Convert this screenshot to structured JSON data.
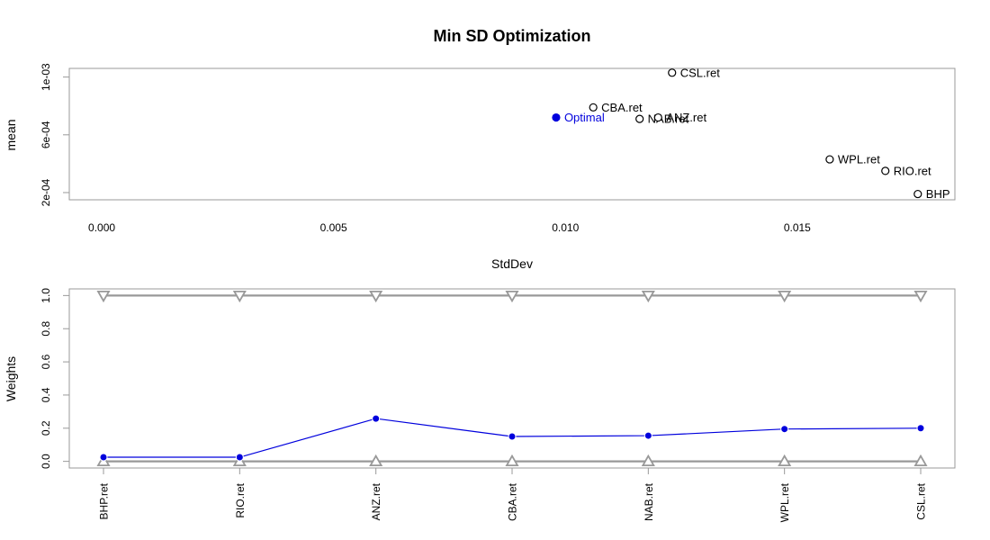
{
  "title": "Min SD Optimization",
  "chart_data": [
    {
      "type": "scatter",
      "title": "Min SD Optimization",
      "xlabel": "StdDev",
      "ylabel": "mean",
      "xlim": [
        -0.0007,
        0.0184
      ],
      "ylim": [
        0.00015,
        0.00106
      ],
      "x_ticks": [
        0.0,
        0.005,
        0.01,
        0.015
      ],
      "x_tick_labels": [
        "0.000",
        "0.005",
        "0.010",
        "0.015"
      ],
      "y_ticks": [
        0.0002,
        0.0006,
        0.001
      ],
      "y_tick_labels": [
        "2e-04",
        "6e-04",
        "1e-03"
      ],
      "grid": false,
      "assets_color": "#000000",
      "optimal_color": "#0000dd",
      "points": [
        {
          "name": "CSL.ret",
          "x": 0.0123,
          "y": 0.00103,
          "kind": "asset"
        },
        {
          "name": "CBA.ret",
          "x": 0.0106,
          "y": 0.00079,
          "kind": "asset"
        },
        {
          "name": "NAB.ret",
          "x": 0.0116,
          "y": 0.00071,
          "kind": "asset"
        },
        {
          "name": "ANZ.ret",
          "x": 0.012,
          "y": 0.00072,
          "kind": "asset"
        },
        {
          "name": "WPL.ret",
          "x": 0.0157,
          "y": 0.00043,
          "kind": "asset"
        },
        {
          "name": "RIO.ret",
          "x": 0.0169,
          "y": 0.00035,
          "kind": "asset"
        },
        {
          "name": "BHP",
          "x": 0.0176,
          "y": 0.00019,
          "kind": "asset"
        },
        {
          "name": "Optimal",
          "x": 0.0098,
          "y": 0.00072,
          "kind": "optimal"
        }
      ]
    },
    {
      "type": "line",
      "xlabel": "",
      "ylabel": "Weights",
      "ylim": [
        -0.04,
        1.04
      ],
      "y_ticks": [
        0.0,
        0.2,
        0.4,
        0.6,
        0.8,
        1.0
      ],
      "y_tick_labels": [
        "0.0",
        "0.2",
        "0.4",
        "0.6",
        "0.8",
        "1.0"
      ],
      "grid": false,
      "categories": [
        "BHP.ret",
        "RIO.ret",
        "ANZ.ret",
        "CBA.ret",
        "NAB.ret",
        "WPL.ret",
        "CSL.ret"
      ],
      "series": [
        {
          "role": "weights",
          "color": "#0000dd",
          "values": [
            0.025,
            0.025,
            0.258,
            0.15,
            0.155,
            0.195,
            0.2
          ]
        },
        {
          "role": "upper-bound",
          "color": "#999999",
          "marker": "triangle-down",
          "values": [
            1,
            1,
            1,
            1,
            1,
            1,
            1
          ]
        },
        {
          "role": "lower-bound",
          "color": "#999999",
          "marker": "triangle-up",
          "values": [
            0,
            0,
            0,
            0,
            0,
            0,
            0
          ]
        }
      ]
    }
  ]
}
